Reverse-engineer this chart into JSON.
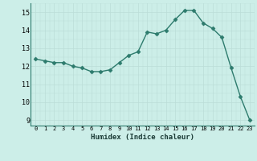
{
  "x": [
    0,
    1,
    2,
    3,
    4,
    5,
    6,
    7,
    8,
    9,
    10,
    11,
    12,
    13,
    14,
    15,
    16,
    17,
    18,
    19,
    20,
    21,
    22,
    23
  ],
  "y": [
    12.4,
    12.3,
    12.2,
    12.2,
    12.0,
    11.9,
    11.7,
    11.7,
    11.8,
    12.2,
    12.6,
    12.8,
    13.9,
    13.8,
    14.0,
    14.6,
    15.1,
    15.1,
    14.4,
    14.1,
    13.6,
    11.9,
    10.3,
    9.0
  ],
  "xlabel": "Humidex (Indice chaleur)",
  "ylim": [
    8.7,
    15.5
  ],
  "xlim": [
    -0.5,
    23.5
  ],
  "yticks": [
    9,
    10,
    11,
    12,
    13,
    14,
    15
  ],
  "xticks": [
    0,
    1,
    2,
    3,
    4,
    5,
    6,
    7,
    8,
    9,
    10,
    11,
    12,
    13,
    14,
    15,
    16,
    17,
    18,
    19,
    20,
    21,
    22,
    23
  ],
  "line_color": "#2d7b6d",
  "marker_color": "#2d7b6d",
  "bg_color": "#cceee8",
  "grid_color_minor": "#bbddd8",
  "grid_color_major": "#bbddd8"
}
